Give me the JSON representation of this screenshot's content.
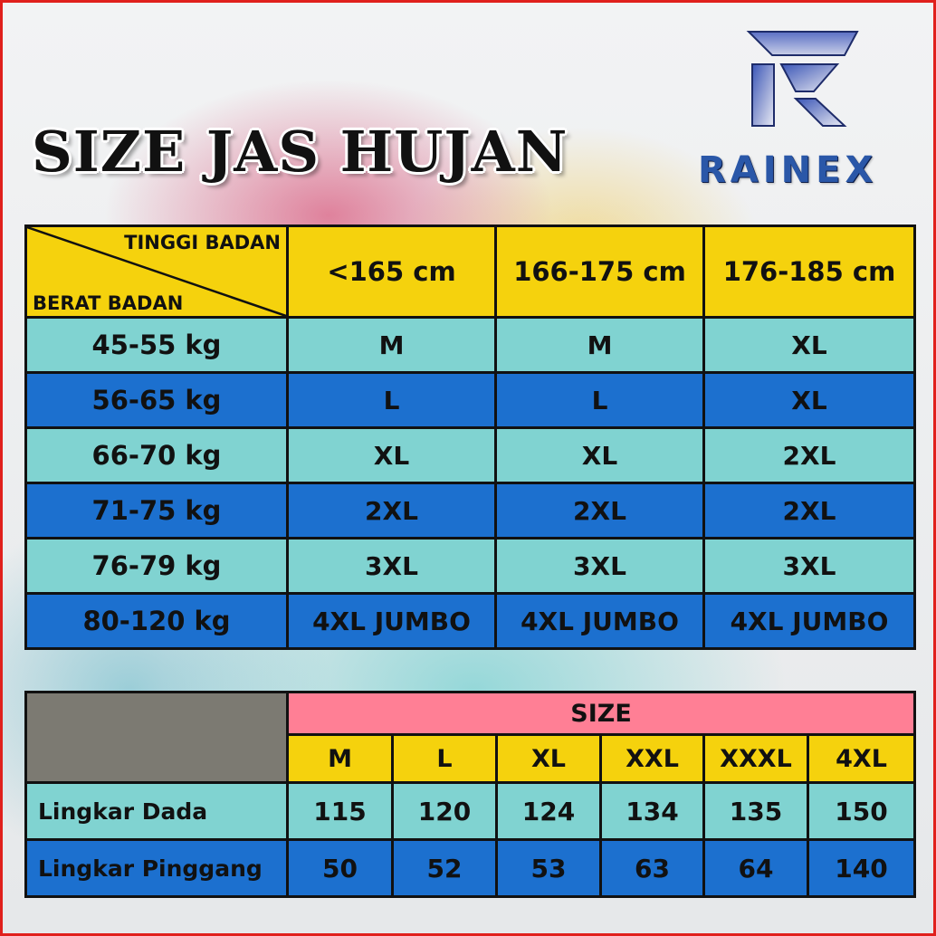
{
  "title": "SIZE JAS HUJAN",
  "brand": {
    "name": "RAINEX",
    "logo_icon": "rainex-r-logo-icon",
    "accent": "#2a57a8"
  },
  "colors": {
    "header_yellow": "#f5d20d",
    "row_light": "#80d3d1",
    "row_dark": "#1c70cf",
    "size_header_pink": "#ff7f95",
    "blank_gray": "#7c7a72",
    "frame_red": "#e0201c"
  },
  "size_table": {
    "corner_top": "TINGGI BADAN",
    "corner_bottom": "BERAT BADAN",
    "heights": [
      "<165 cm",
      "166-175 cm",
      "176-185 cm"
    ],
    "rows": [
      {
        "weight": "45-55 kg",
        "sizes": [
          "M",
          "M",
          "XL"
        ]
      },
      {
        "weight": "56-65 kg",
        "sizes": [
          "L",
          "L",
          "XL"
        ]
      },
      {
        "weight": "66-70 kg",
        "sizes": [
          "XL",
          "XL",
          "2XL"
        ]
      },
      {
        "weight": "71-75 kg",
        "sizes": [
          "2XL",
          "2XL",
          "2XL"
        ]
      },
      {
        "weight": "76-79 kg",
        "sizes": [
          "3XL",
          "3XL",
          "3XL"
        ]
      },
      {
        "weight": "80-120 kg",
        "sizes": [
          "4XL JUMBO",
          "4XL JUMBO",
          "4XL JUMBO"
        ]
      }
    ]
  },
  "measure_table": {
    "size_header": "SIZE",
    "sizes": [
      "M",
      "L",
      "XL",
      "XXL",
      "XXXL",
      "4XL"
    ],
    "rows": [
      {
        "label": "Lingkar Dada",
        "values": [
          "115",
          "120",
          "124",
          "134",
          "135",
          "150"
        ]
      },
      {
        "label": "Lingkar Pinggang",
        "values": [
          "50",
          "52",
          "53",
          "63",
          "64",
          "140"
        ]
      }
    ]
  }
}
